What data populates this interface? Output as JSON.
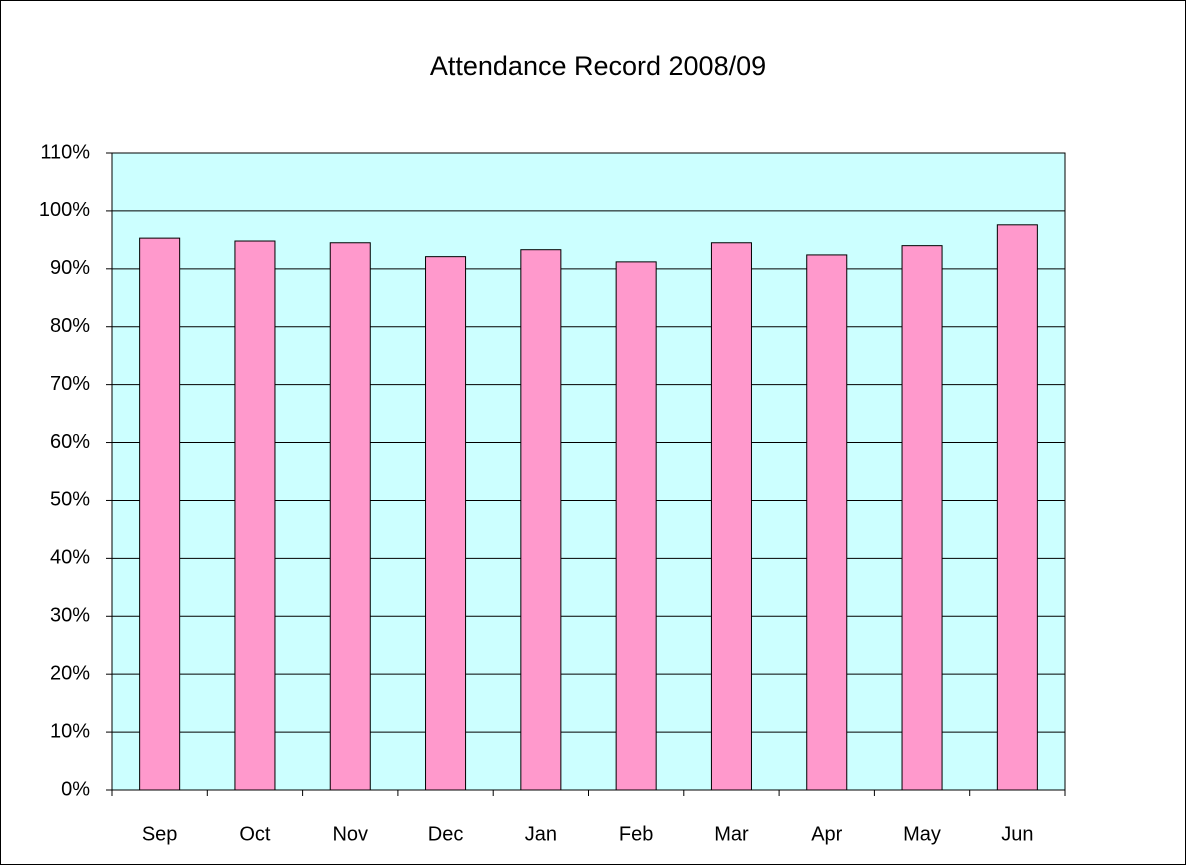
{
  "chart_data": {
    "type": "bar",
    "title": "Attendance Record 2008/09",
    "categories": [
      "Sep",
      "Oct",
      "Nov",
      "Dec",
      "Jan",
      "Feb",
      "Mar",
      "Apr",
      "May",
      "Jun"
    ],
    "values": [
      95.3,
      94.8,
      94.5,
      92.1,
      93.3,
      91.2,
      94.5,
      92.4,
      94.0,
      97.6
    ],
    "color": "#ff99cc",
    "plot_background": "#ccffff",
    "ylim": [
      0,
      110
    ],
    "yticks": [
      {
        "value": 0,
        "label": "0%"
      },
      {
        "value": 10,
        "label": "10%"
      },
      {
        "value": 20,
        "label": "20%"
      },
      {
        "value": 30,
        "label": "30%"
      },
      {
        "value": 40,
        "label": "40%"
      },
      {
        "value": 50,
        "label": "50%"
      },
      {
        "value": 60,
        "label": "60%"
      },
      {
        "value": 70,
        "label": "70%"
      },
      {
        "value": 80,
        "label": "80%"
      },
      {
        "value": 90,
        "label": "90%"
      },
      {
        "value": 100,
        "label": "100%"
      },
      {
        "value": 110,
        "label": "110%"
      }
    ],
    "grid": true
  }
}
